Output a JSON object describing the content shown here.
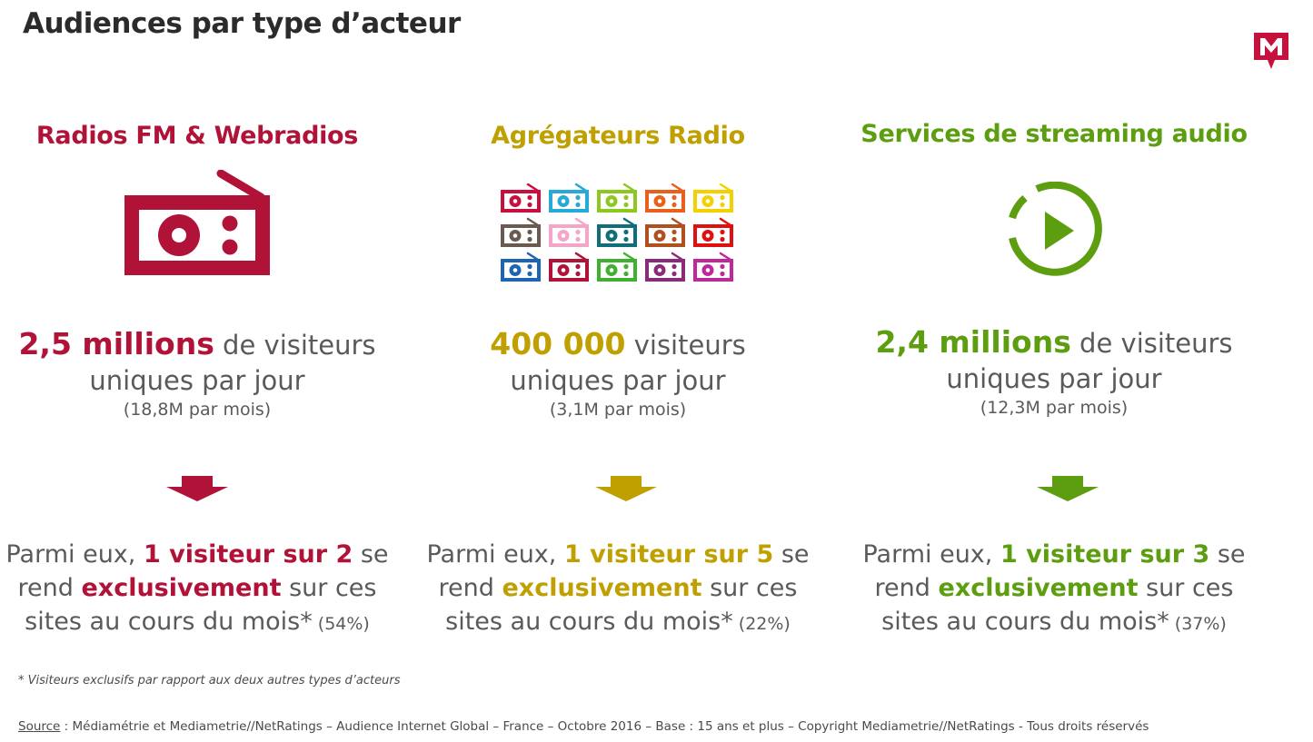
{
  "title": "Audiences par type d’acteur",
  "colors": {
    "red": "#b01238",
    "olive": "#bfa000",
    "green": "#5c9e0f",
    "text": "#5a5a5a"
  },
  "columns": [
    {
      "heading": "Radios FM & Webradios",
      "icon": "radio-icon",
      "big_value": "2,5 millions",
      "after_big": " de visiteurs",
      "line2": "uniques par jour",
      "line3": "(18,8M par mois)",
      "p_pre": "Parmi eux, ",
      "p_bold1": "1 visiteur sur 2",
      "p_mid1": " se",
      "p_rend": "rend ",
      "p_bold2": "exclusivement",
      "p_mid2": " sur ces",
      "p_line3": "sites au cours du mois*",
      "p_pct": " (54%)"
    },
    {
      "heading": "Agrégateurs Radio",
      "icon": "radio-grid-icon",
      "big_value": "400 000",
      "after_big": " visiteurs",
      "line2": "uniques par jour",
      "line3": "(3,1M par mois)",
      "p_pre": "Parmi eux, ",
      "p_bold1": "1 visiteur sur 5",
      "p_mid1": " se",
      "p_rend": "rend ",
      "p_bold2": "exclusivement",
      "p_mid2": " sur ces",
      "p_line3": "sites au cours du mois*",
      "p_pct": " (22%)"
    },
    {
      "heading": "Services de streaming audio",
      "icon": "play-circle-icon",
      "big_value": "2,4 millions",
      "after_big": " de visiteurs",
      "line2": "uniques par jour",
      "line3": "(12,3M par mois)",
      "p_pre": "Parmi eux, ",
      "p_bold1": "1 visiteur sur 3",
      "p_mid1": " se",
      "p_rend": "rend ",
      "p_bold2": "exclusivement",
      "p_mid2": " sur ces",
      "p_line3": "sites au cours du mois*",
      "p_pct": " (37%)"
    }
  ],
  "footnote": "* Visiteurs exclusifs par rapport aux deux autres types d’acteurs",
  "source_label": "Source",
  "source_text": " : Médiamétrie et Mediametrie//NetRatings – Audience Internet Global – France – Octobre 2016 – Base : 15 ans et plus – Copyright Mediametrie//NetRatings - Tous droits réservés",
  "small_radio_colors": [
    "#c8103e",
    "#29a9d6",
    "#8cc820",
    "#e8601c",
    "#f5d000",
    "#6a5a50",
    "#f4a6c8",
    "#0f6e78",
    "#b0501e",
    "#e01010",
    "#1e64b4",
    "#b01238",
    "#40b030",
    "#8a2a7a",
    "#c0289a"
  ]
}
